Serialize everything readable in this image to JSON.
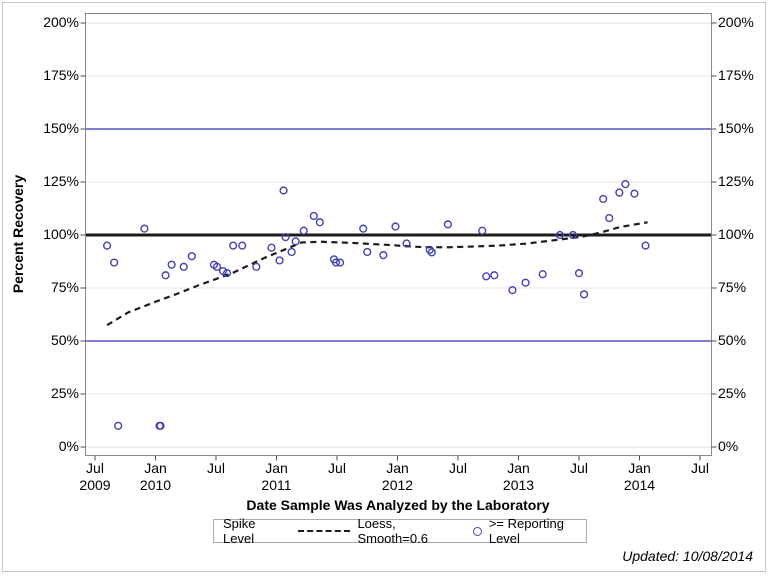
{
  "page": {
    "footer_note": "Updated: 10/08/2014"
  },
  "chart_data": {
    "type": "scatter",
    "title": "",
    "xlabel": "Date Sample Was Analyzed by the Laboratory",
    "ylabel": "Percent Recovery",
    "y_axis": {
      "min": 0,
      "max": 200,
      "step": 25,
      "unit": "%",
      "tick_labels": [
        "0%",
        "25%",
        "50%",
        "75%",
        "100%",
        "125%",
        "150%",
        "175%",
        "200%"
      ],
      "grid": true,
      "labels_on_both_sides": true
    },
    "x_axis": {
      "note": "m = months after Jul 2009; range Jul 2009 to Jul 2014",
      "ticks": [
        {
          "m": 0,
          "month": "Jul",
          "year": "2009"
        },
        {
          "m": 6,
          "month": "Jan",
          "year": "2010"
        },
        {
          "m": 12,
          "month": "Jul",
          "year": ""
        },
        {
          "m": 18,
          "month": "Jan",
          "year": "2011"
        },
        {
          "m": 24,
          "month": "Jul",
          "year": ""
        },
        {
          "m": 30,
          "month": "Jan",
          "year": "2012"
        },
        {
          "m": 36,
          "month": "Jul",
          "year": ""
        },
        {
          "m": 42,
          "month": "Jan",
          "year": "2013"
        },
        {
          "m": 48,
          "month": "Jul",
          "year": ""
        },
        {
          "m": 54,
          "month": "Jan",
          "year": "2014"
        },
        {
          "m": 60,
          "month": "Jul",
          "year": ""
        }
      ]
    },
    "reference_lines": [
      {
        "name": "spike-level",
        "value": 100,
        "color": "#1c1c1c",
        "width": 3
      },
      {
        "name": "upper-limit",
        "value": 150,
        "color": "#3333b2",
        "width": 1.2
      },
      {
        "name": "lower-limit",
        "value": 50,
        "color": "#3333b2",
        "width": 1.2
      }
    ],
    "series": [
      {
        "name": ">= Reporting Level",
        "type": "scatter",
        "marker": "open-circle",
        "color": "#4343b0",
        "points": [
          [
            1.2,
            95
          ],
          [
            1.9,
            87
          ],
          [
            2.3,
            10
          ],
          [
            4.9,
            103
          ],
          [
            6.4,
            10
          ],
          [
            6.5,
            10
          ],
          [
            7.0,
            81
          ],
          [
            7.6,
            86
          ],
          [
            8.8,
            85
          ],
          [
            9.6,
            90
          ],
          [
            11.8,
            86
          ],
          [
            12.1,
            85
          ],
          [
            12.7,
            83
          ],
          [
            13.1,
            82
          ],
          [
            13.7,
            95
          ],
          [
            14.6,
            95
          ],
          [
            16.0,
            85
          ],
          [
            17.5,
            94
          ],
          [
            18.3,
            88
          ],
          [
            18.7,
            121
          ],
          [
            18.9,
            99
          ],
          [
            19.5,
            92
          ],
          [
            19.9,
            97
          ],
          [
            20.7,
            102
          ],
          [
            21.7,
            109
          ],
          [
            22.3,
            106
          ],
          [
            23.7,
            88.5
          ],
          [
            23.9,
            87
          ],
          [
            24.3,
            87
          ],
          [
            26.6,
            103
          ],
          [
            27.0,
            92
          ],
          [
            28.6,
            90.5
          ],
          [
            29.8,
            104
          ],
          [
            30.9,
            96
          ],
          [
            33.2,
            93
          ],
          [
            33.4,
            91.8
          ],
          [
            35.0,
            105
          ],
          [
            38.4,
            102
          ],
          [
            38.8,
            80.5
          ],
          [
            39.6,
            81
          ],
          [
            41.4,
            74
          ],
          [
            42.7,
            77.5
          ],
          [
            44.4,
            81.5
          ],
          [
            46.1,
            100
          ],
          [
            47.4,
            100
          ],
          [
            48.0,
            82
          ],
          [
            48.5,
            72
          ],
          [
            50.4,
            117
          ],
          [
            51.0,
            108
          ],
          [
            52.0,
            120
          ],
          [
            52.6,
            124
          ],
          [
            53.5,
            119.5
          ],
          [
            54.6,
            95
          ]
        ]
      },
      {
        "name": "Loess, Smooth=0.6",
        "type": "line",
        "style": "dashed",
        "color": "#1c1c1c",
        "points": [
          [
            1.2,
            57.5
          ],
          [
            3.3,
            63.5
          ],
          [
            6.0,
            68.5
          ],
          [
            8.0,
            72
          ],
          [
            10.4,
            76.5
          ],
          [
            13.6,
            82
          ],
          [
            16.7,
            89
          ],
          [
            19.0,
            93.5
          ],
          [
            20.5,
            96.5
          ],
          [
            22.5,
            96.8
          ],
          [
            25.8,
            96.2
          ],
          [
            29.1,
            95.3
          ],
          [
            32.4,
            94.3
          ],
          [
            35.0,
            94.2
          ],
          [
            37.7,
            94.6
          ],
          [
            40.0,
            95
          ],
          [
            42.7,
            95.9
          ],
          [
            46.0,
            97.8
          ],
          [
            48.4,
            99.3
          ],
          [
            50.0,
            101
          ],
          [
            52.1,
            103.8
          ],
          [
            54.8,
            106
          ]
        ]
      }
    ],
    "legend": {
      "position": "bottom",
      "title": "Spike Level",
      "entries": [
        "Loess, Smooth=0.6",
        ">= Reporting Level"
      ]
    },
    "colors": {
      "grid": "#e3e3e3",
      "axis_border": "#8a8a8a",
      "tick": "#4d4d4d",
      "marker": "#4343b0",
      "reference_blue": "#3333b2",
      "black_line": "#1c1c1c"
    }
  }
}
